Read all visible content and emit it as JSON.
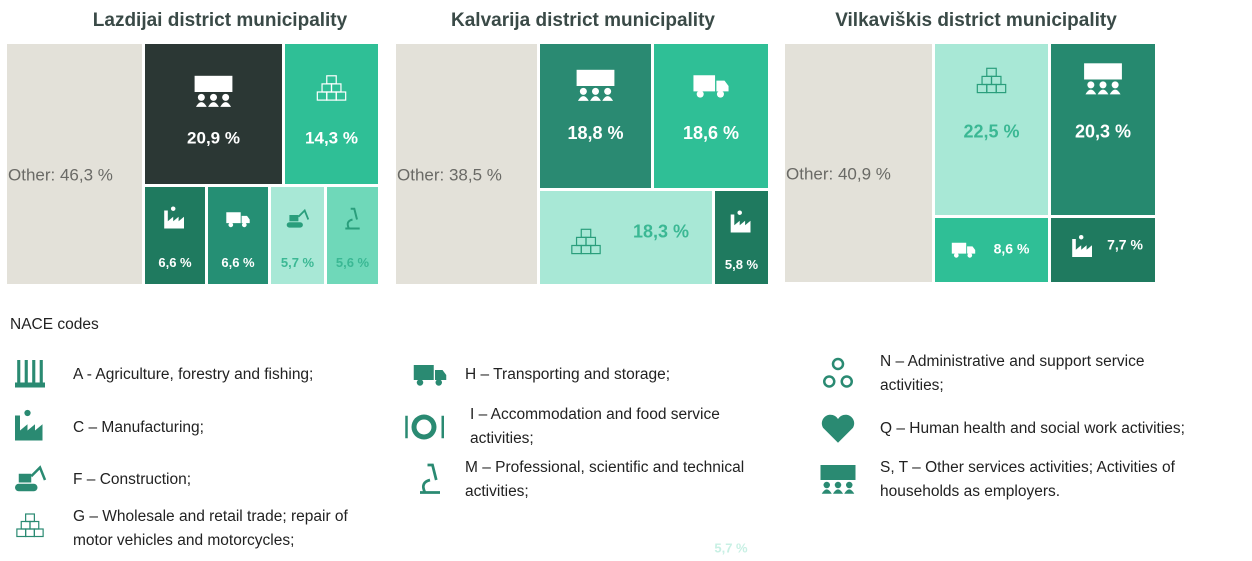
{
  "chart_data": [
    {
      "type": "treemap",
      "title": "Lazdijai district municipality",
      "values": [
        46.3,
        20.9,
        14.3,
        6.6,
        6.6,
        5.7,
        5.6
      ],
      "value_labels": [
        "Other: 46,3 %",
        "20,9 %",
        "14,3 %",
        "6,6 %",
        "6,6 %",
        "5,7 %",
        "5,6 %"
      ],
      "colors": [
        "#e3e1d9",
        "#2b3734",
        "#2fbf96",
        "#1f7a5f",
        "#258f74",
        "#a8e8d6",
        "#6fd8b9"
      ]
    },
    {
      "type": "treemap",
      "title": "Kalvarija district municipality",
      "values": [
        38.5,
        18.8,
        18.6,
        18.3,
        5.8
      ],
      "value_labels": [
        "Other: 38,5 %",
        "18,8 %",
        "18,6 %",
        "18,3 %",
        "5,8 %"
      ],
      "colors": [
        "#e3e1d9",
        "#2a8a72",
        "#2fbf96",
        "#a8e8d6",
        "#1f7a5f"
      ]
    },
    {
      "type": "treemap",
      "title": "Vilkaviškis district municipality",
      "values": [
        40.9,
        22.5,
        20.3,
        8.6,
        7.7
      ],
      "value_labels": [
        "Other: 40,9 %",
        "22,5 %",
        "20,3 %",
        "8,6 %",
        "7,7 %"
      ],
      "colors": [
        "#e3e1d9",
        "#a8e8d6",
        "#26896f",
        "#2fbf96",
        "#1f7a5f"
      ]
    }
  ],
  "legend": {
    "title": "NACE codes",
    "items": [
      {
        "lines": [
          "A - Agriculture, forestry and fishing;"
        ]
      },
      {
        "lines": [
          "C – Manufacturing;"
        ]
      },
      {
        "lines": [
          "F – Construction;"
        ]
      },
      {
        "lines": [
          "G – Wholesale and retail trade; repair of",
          "motor vehicles and motorcycles;"
        ]
      },
      {
        "lines": [
          "H – Transporting and storage;"
        ]
      },
      {
        "lines": [
          "I – Accommodation and food service",
          "activities;"
        ]
      },
      {
        "lines": [
          "M – Professional, scientific and technical",
          "activities;"
        ]
      },
      {
        "lines": [
          "N – Administrative and support service",
          "activities;"
        ]
      },
      {
        "lines": [
          "Q – Human health and social work activities;"
        ]
      },
      {
        "lines": [
          "S, T – Other services activities; Activities of",
          "households as employers."
        ]
      }
    ]
  },
  "annotation": "5,7 %"
}
